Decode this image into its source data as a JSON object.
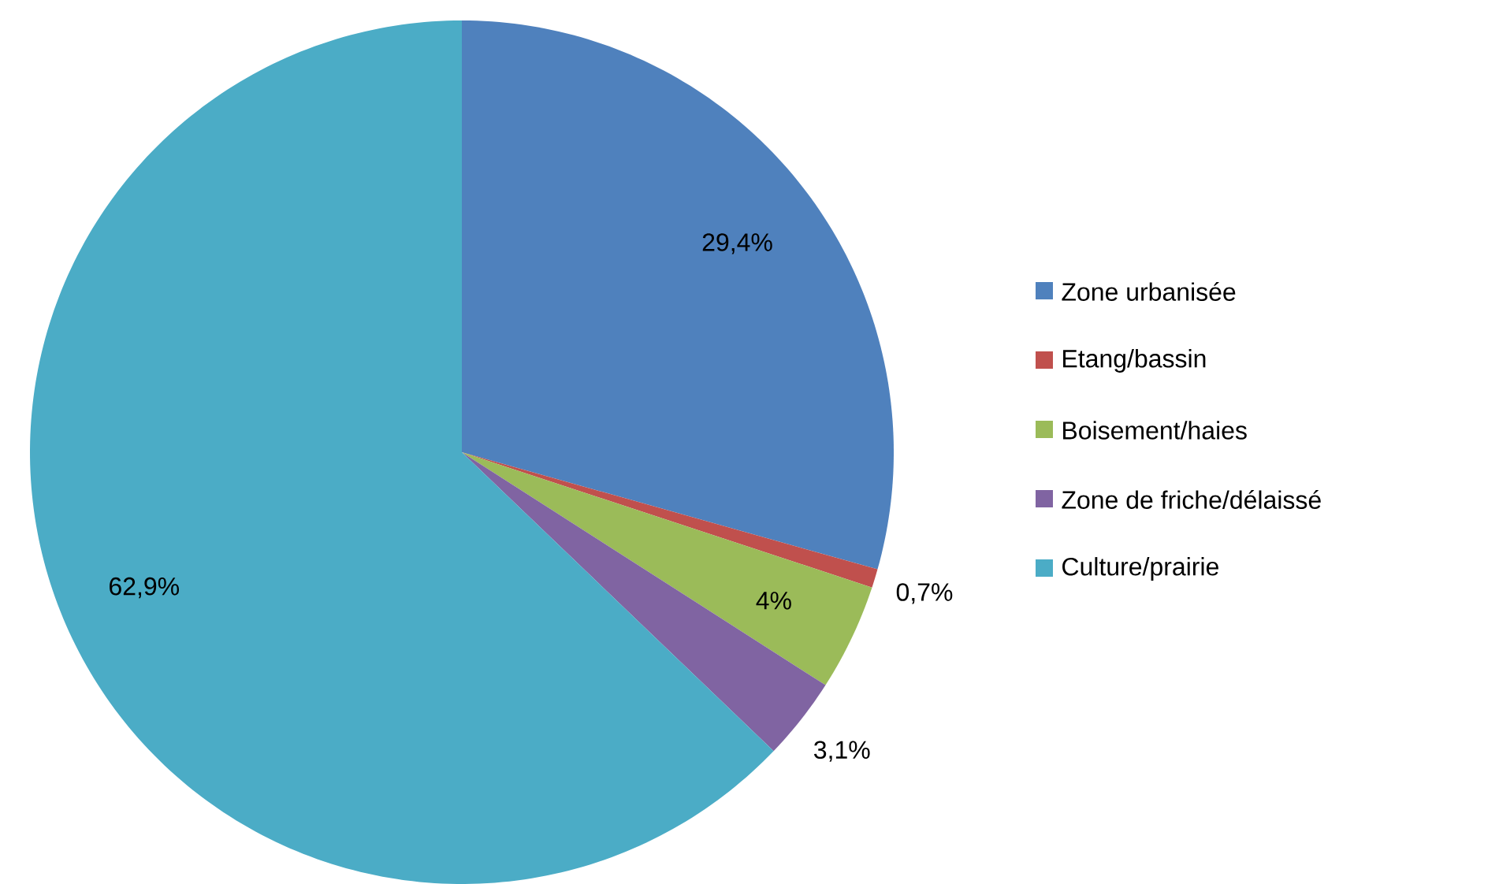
{
  "chart_data": {
    "type": "pie",
    "categories": [
      "Zone urbanisée",
      "Etang/bassin",
      "Boisement/haies",
      "Zone de friche/délaissé",
      "Culture/prairie"
    ],
    "values": [
      29.4,
      0.7,
      4,
      3.1,
      62.9
    ],
    "value_labels": [
      "29,4%",
      "0,7%",
      "4%",
      "3,1%",
      "62,9%"
    ],
    "colors": [
      "#4f81bd",
      "#c0504d",
      "#9bbb59",
      "#8064a2",
      "#4bacc6"
    ],
    "legend": "right"
  }
}
